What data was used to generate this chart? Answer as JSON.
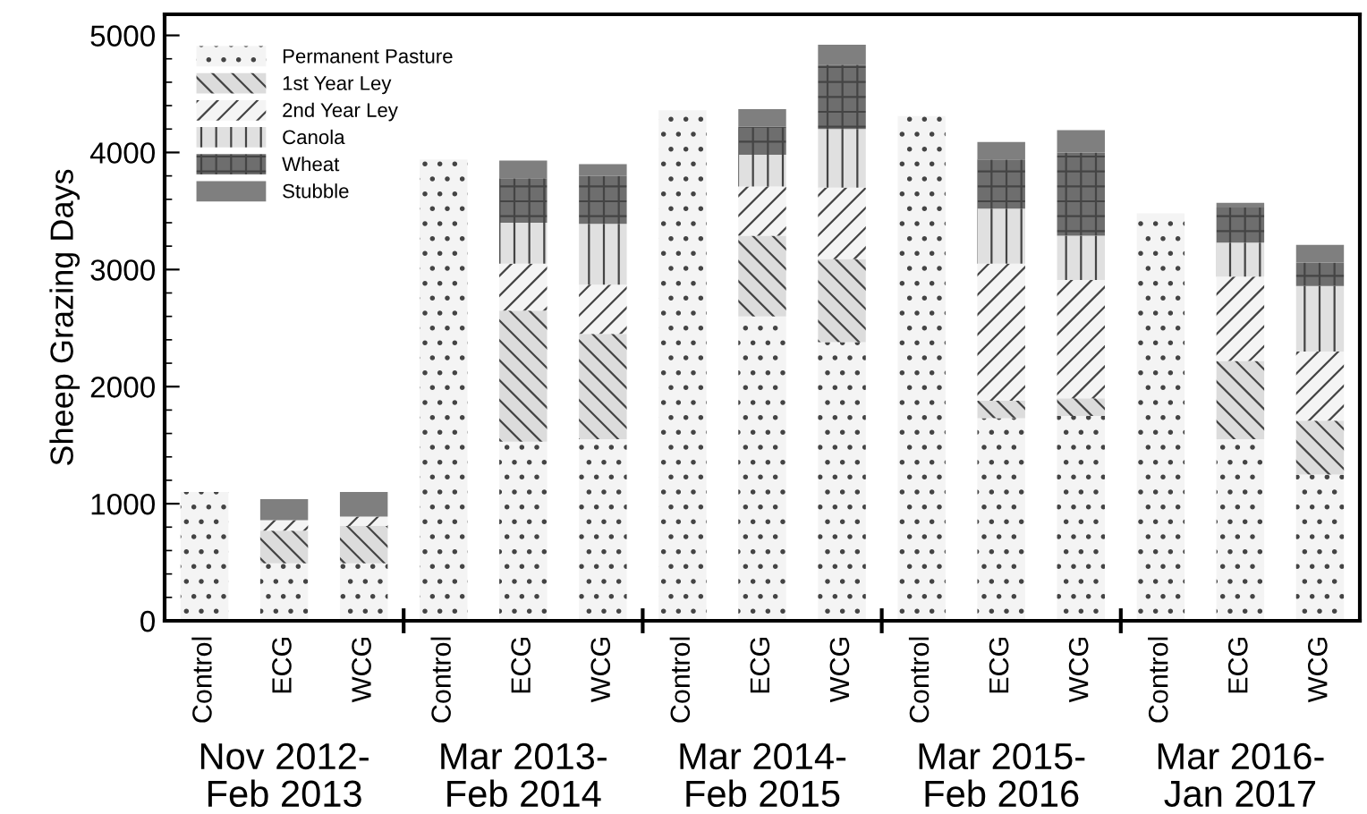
{
  "chart_data": {
    "type": "bar",
    "stacked": true,
    "ylabel": "Sheep Grazing Days",
    "categories": [
      "Control",
      "ECG",
      "WCG",
      "Control",
      "ECG",
      "WCG",
      "Control",
      "ECG",
      "WCG",
      "Control",
      "ECG",
      "WCG",
      "Control",
      "ECG",
      "WCG"
    ],
    "annotations": [
      "Nov 2012-\nFeb 2013",
      "Mar 2013-\nFeb 2014",
      "Mar 2014-\nFeb 2015",
      "Mar 2015-\nFeb 2016",
      "Mar 2016-\nJan 2017"
    ],
    "series": [
      {
        "name": "Permanent Pasture",
        "color": "#f4f4f4",
        "values": [
          1100,
          490,
          490,
          3940,
          1530,
          1550,
          4360,
          2600,
          2380,
          4310,
          1730,
          1750,
          3480,
          1550,
          1250
        ]
      },
      {
        "name": "1st Year Ley",
        "color": "#dcdcdc",
        "values": [
          0,
          280,
          320,
          0,
          1120,
          900,
          0,
          690,
          710,
          0,
          150,
          150,
          0,
          670,
          460
        ]
      },
      {
        "name": "2nd Year Ley",
        "color": "#f4f4f4",
        "values": [
          0,
          90,
          80,
          0,
          400,
          420,
          0,
          420,
          610,
          0,
          1170,
          1010,
          0,
          720,
          590
        ]
      },
      {
        "name": "Canola",
        "color": "#e0e0e0",
        "values": [
          0,
          0,
          0,
          0,
          350,
          520,
          0,
          270,
          500,
          0,
          470,
          380,
          0,
          290,
          560
        ]
      },
      {
        "name": "Wheat",
        "color": "#6e6e6e",
        "values": [
          0,
          0,
          0,
          0,
          380,
          410,
          0,
          240,
          550,
          0,
          420,
          710,
          0,
          300,
          200
        ]
      },
      {
        "name": "Stubble",
        "color": "#7f7f7f",
        "values": [
          0,
          180,
          210,
          0,
          150,
          100,
          0,
          150,
          170,
          0,
          150,
          190,
          0,
          40,
          150
        ]
      }
    ],
    "ylim": [
      0,
      5180
    ],
    "yticks": [
      0,
      1000,
      2000,
      3000,
      4000,
      5000
    ],
    "grid": false,
    "legend": "top left"
  }
}
